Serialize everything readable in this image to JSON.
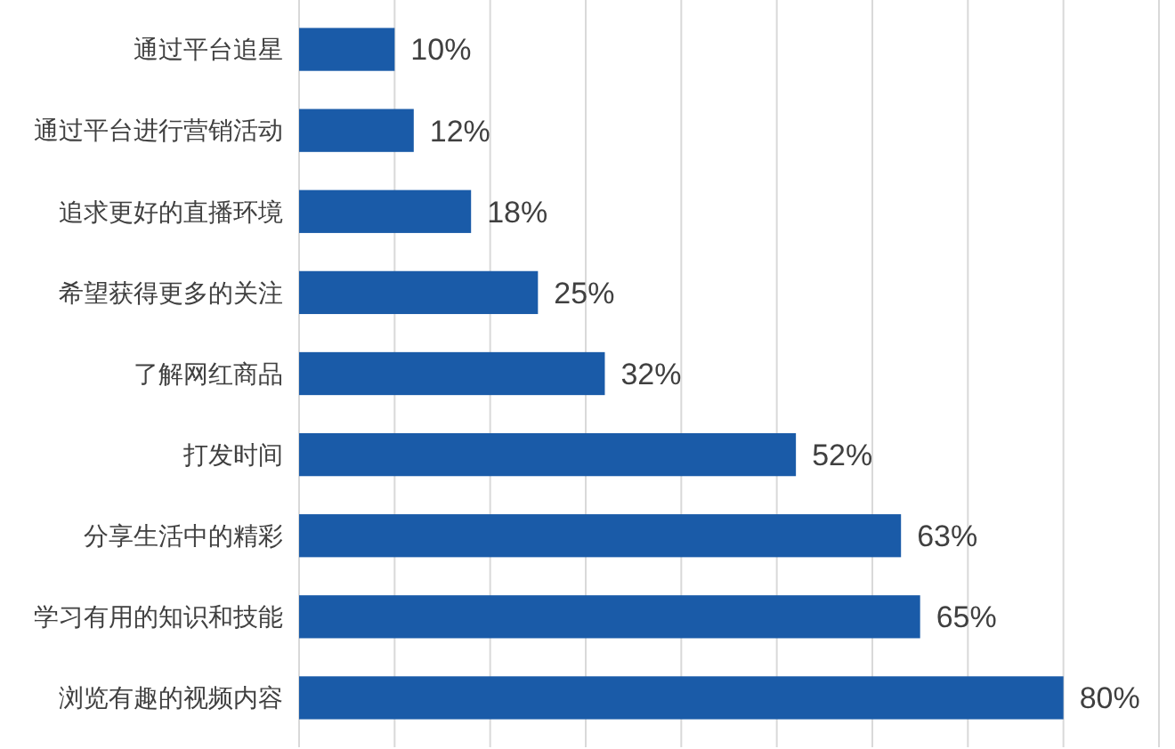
{
  "chart_data": {
    "type": "bar",
    "orientation": "horizontal",
    "categories": [
      "通过平台追星",
      "通过平台进行营销活动",
      "追求更好的直播环境",
      "希望获得更多的关注",
      "了解网红商品",
      "打发时间",
      "分享生活中的精彩",
      "学习有用的知识和技能",
      "浏览有趣的视频内容"
    ],
    "values": [
      10,
      12,
      18,
      25,
      32,
      52,
      63,
      65,
      80
    ],
    "value_labels": [
      "10%",
      "12%",
      "18%",
      "25%",
      "32%",
      "52%",
      "63%",
      "65%",
      "80%"
    ],
    "color": "#1a5ba8",
    "xlim": [
      0,
      90
    ],
    "xticks": [
      {
        "value": 0,
        "label": null
      },
      {
        "value": 10,
        "label": null
      },
      {
        "value": 20,
        "label": null
      },
      {
        "value": 30,
        "label": null
      },
      {
        "value": 40,
        "label": null
      },
      {
        "value": 50,
        "label": null
      },
      {
        "value": 60,
        "label": null
      },
      {
        "value": 70,
        "label": null
      },
      {
        "value": 80,
        "label": null
      },
      {
        "value": 90,
        "label": null
      }
    ],
    "grid": "x",
    "tick_labels": "y"
  }
}
